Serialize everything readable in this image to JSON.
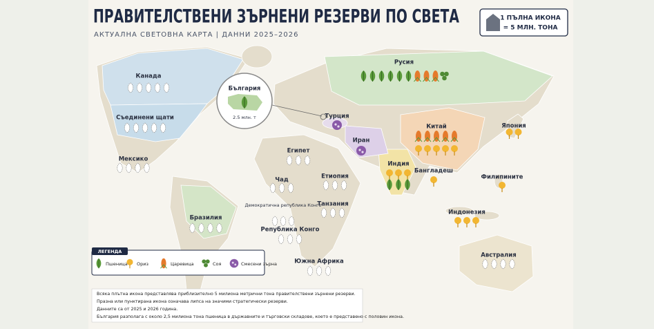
{
  "header": {
    "title": "ПРАВИТЕЛСТВЕНИ ЗЪРНЕНИ РЕЗЕРВИ ПО СВЕТА",
    "subtitle": "АКТУАЛНА СВЕТОВНА КАРТА  |  ДАННИ 2025–2026"
  },
  "key": {
    "line1": "1 ПЪЛНА ИКОНА",
    "line2": "= 5 МЛН. ТОНА"
  },
  "bulgaria": {
    "label": "България",
    "value": "2.5 млн. т"
  },
  "countries": [
    {
      "label": "Канада"
    },
    {
      "label": "Съединени щати"
    },
    {
      "label": "Мексико"
    },
    {
      "label": "Бразилия"
    },
    {
      "label": "Египет"
    },
    {
      "label": "Чад"
    },
    {
      "label": "Етиопия"
    },
    {
      "label": "Демократична република Конго"
    },
    {
      "label": "Танзания"
    },
    {
      "label": "Република Конго"
    },
    {
      "label": "Южна Африка"
    },
    {
      "label": "Турция"
    },
    {
      "label": "Иран"
    },
    {
      "label": "Русия"
    },
    {
      "label": "Китай"
    },
    {
      "label": "Индия"
    },
    {
      "label": "Бангладеш"
    },
    {
      "label": "Япония"
    },
    {
      "label": "Филипините"
    },
    {
      "label": "Индонезия"
    },
    {
      "label": "Австралия"
    }
  ],
  "legend": {
    "title": "ЛЕГЕНДА",
    "items": [
      "Пшеница",
      "Ориз",
      "Царевица",
      "Соя",
      "Смесени зърна"
    ]
  },
  "footnote": [
    "Всяка плътна икона представлява приблизително 5 милиона метрични тона правителствени зърнени резерви.",
    "Празна или пунктирана икона означава липса на значими стратегически резерви.",
    "Данните са от 2025 и 2026 година.",
    "България разполага с около 2,5 милиона тона пшеница в държавните и търговски складове, което е представено с половин икона."
  ]
}
